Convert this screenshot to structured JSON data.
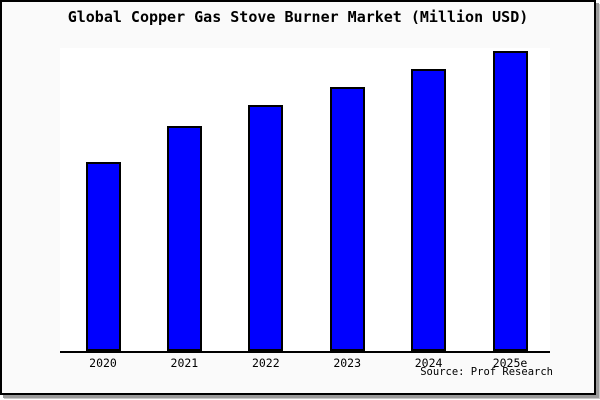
{
  "chart_data": {
    "type": "bar",
    "title": "Global Copper Gas Stove Burner Market (Million USD)",
    "categories": [
      "2020",
      "2021",
      "2022",
      "2023",
      "2024",
      "2025e"
    ],
    "values": [
      63,
      75,
      82,
      88,
      94,
      100
    ],
    "value_scale": "relative index; no y-axis or value labels shown, 2025e bar = 100",
    "xlabel": "",
    "ylabel": "",
    "ylim": [
      0,
      101
    ],
    "grid": false,
    "legend": false,
    "bar_color": "#0000ff",
    "bar_border_color": "#000000",
    "plot_bg": "#ffffff",
    "outer_bg": "#fafafa",
    "frame_border_color": "#000000",
    "shadow_color": "#9a9a9a"
  },
  "footer": {
    "source": "Source: Prof Research"
  }
}
